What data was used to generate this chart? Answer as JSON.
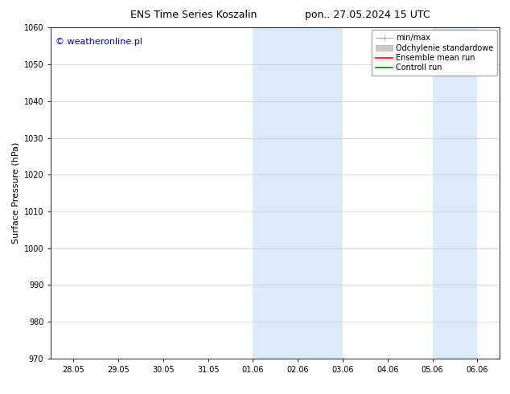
{
  "title_left": "ENS Time Series Koszalin",
  "title_right": "pon.. 27.05.2024 15 UTC",
  "ylabel": "Surface Pressure (hPa)",
  "ylim": [
    970,
    1060
  ],
  "yticks": [
    970,
    980,
    990,
    1000,
    1010,
    1020,
    1030,
    1040,
    1050,
    1060
  ],
  "xtick_labels": [
    "28.05",
    "29.05",
    "30.05",
    "31.05",
    "01.06",
    "02.06",
    "03.06",
    "04.06",
    "05.06",
    "06.06"
  ],
  "xtick_positions": [
    0,
    1,
    2,
    3,
    4,
    5,
    6,
    7,
    8,
    9
  ],
  "xlim": [
    -0.5,
    9.5
  ],
  "shaded_bands": [
    {
      "xmin": 4.0,
      "xmax": 5.0
    },
    {
      "xmin": 5.0,
      "xmax": 6.0
    },
    {
      "xmin": 8.0,
      "xmax": 9.0
    }
  ],
  "shaded_color": "#daeaf7",
  "watermark": "© weatheronline.pl",
  "watermark_color": "#0000cc",
  "legend_items": [
    {
      "label": "min/max",
      "color": "#aaaaaa"
    },
    {
      "label": "Odchylenie standardowe",
      "color": "#cccccc"
    },
    {
      "label": "Ensemble mean run",
      "color": "#ff0000"
    },
    {
      "label": "Controll run",
      "color": "#008000"
    }
  ],
  "bg_color": "#ffffff",
  "grid_color": "#cccccc",
  "title_fontsize": 9,
  "tick_fontsize": 7,
  "ylabel_fontsize": 8,
  "legend_fontsize": 7,
  "watermark_fontsize": 8
}
